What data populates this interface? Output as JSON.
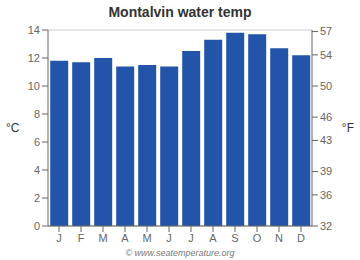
{
  "chart_data": {
    "type": "bar",
    "title": "Montalvin water temp",
    "categories": [
      "J",
      "F",
      "M",
      "A",
      "M",
      "J",
      "J",
      "A",
      "S",
      "O",
      "N",
      "D"
    ],
    "values": [
      11.8,
      11.7,
      12.0,
      11.4,
      11.5,
      11.4,
      12.5,
      13.3,
      13.8,
      13.7,
      12.7,
      12.2
    ],
    "color": "#2255aa",
    "ylim": [
      0,
      14
    ],
    "yticks": [
      0,
      2,
      4,
      6,
      8,
      10,
      12,
      14
    ],
    "y_label": "°C",
    "y2lim": [
      32,
      57.2
    ],
    "y2ticks": [
      32,
      36,
      39,
      43,
      46,
      50,
      54,
      57
    ],
    "y2_label": "°F",
    "grid": true,
    "annotations": [
      "© www.seatemperature.org"
    ]
  }
}
